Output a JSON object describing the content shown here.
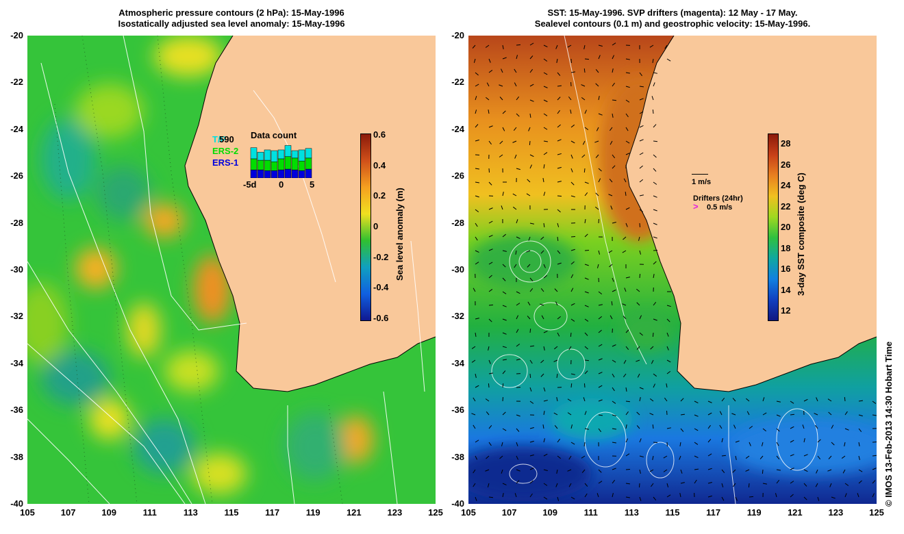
{
  "left_panel": {
    "title_line1": "Atmospheric pressure contours (2 hPa): 15-May-1996",
    "title_line2": "Isostatically adjusted sea level anomaly: 15-May-1996",
    "colorbar_label": "Sea level anomaly (m)",
    "colorbar_ticks": [
      "0.6",
      "0.4",
      "0.2",
      "0",
      "-0.2",
      "-0.4",
      "-0.6"
    ],
    "inset": {
      "title": "Data count",
      "count": "590",
      "legend": [
        {
          "label": "T/P",
          "color": "#00e0e0"
        },
        {
          "label": "ERS-2",
          "color": "#00dd00"
        },
        {
          "label": "ERS-1",
          "color": "#0000dd"
        }
      ],
      "x_ticks": [
        "-5d",
        "0",
        "5"
      ],
      "bars": [
        {
          "tp": 0.3,
          "ers2": 0.3,
          "ers1": 0.22
        },
        {
          "tp": 0.22,
          "ers2": 0.26,
          "ers1": 0.22
        },
        {
          "tp": 0.28,
          "ers2": 0.28,
          "ers1": 0.2
        },
        {
          "tp": 0.3,
          "ers2": 0.24,
          "ers1": 0.2
        },
        {
          "tp": 0.24,
          "ers2": 0.3,
          "ers1": 0.22
        },
        {
          "tp": 0.3,
          "ers2": 0.34,
          "ers1": 0.24
        },
        {
          "tp": 0.2,
          "ers2": 0.32,
          "ers1": 0.22
        },
        {
          "tp": 0.3,
          "ers2": 0.26,
          "ers1": 0.2
        },
        {
          "tp": 0.26,
          "ers2": 0.3,
          "ers1": 0.24
        }
      ]
    }
  },
  "right_panel": {
    "title_line1": "SST: 15-May-1996. SVP drifters (magenta): 12 May - 17 May.",
    "title_line2": "Sealevel contours (0.1 m) and geostrophic velocity: 15-May-1996.",
    "colorbar_label": "3-day SST composite (deg C)",
    "colorbar_ticks": [
      "28",
      "26",
      "24",
      "22",
      "20",
      "18",
      "16",
      "14",
      "12"
    ],
    "velocity_scale_label": "1 m/s",
    "drifters_label": "Drifters (24hr)",
    "drifters_scale_label": "0.5 m/s"
  },
  "axes": {
    "lat_ticks": [
      "-20",
      "-22",
      "-24",
      "-26",
      "-28",
      "-30",
      "-32",
      "-34",
      "-36",
      "-38",
      "-40"
    ],
    "lon_ticks": [
      "105",
      "107",
      "109",
      "111",
      "113",
      "115",
      "117",
      "119",
      "121",
      "123",
      "125"
    ]
  },
  "credit": "© IMOS 13-Feb-2013 14:30 Hobart Time",
  "colors": {
    "land": "#f9c89a",
    "sla_mid": "#2ecc33",
    "sla_high": "#f5a31a",
    "sst_warm": "#c8561c",
    "sst_cold": "#1040c0"
  }
}
